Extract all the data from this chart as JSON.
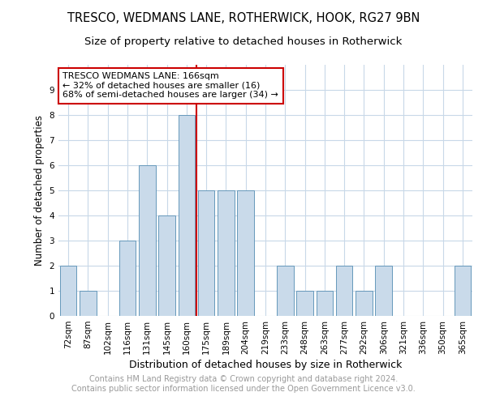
{
  "title": "TRESCO, WEDMANS LANE, ROTHERWICK, HOOK, RG27 9BN",
  "subtitle": "Size of property relative to detached houses in Rotherwick",
  "xlabel": "Distribution of detached houses by size in Rotherwick",
  "ylabel": "Number of detached properties",
  "categories": [
    "72sqm",
    "87sqm",
    "102sqm",
    "116sqm",
    "131sqm",
    "145sqm",
    "160sqm",
    "175sqm",
    "189sqm",
    "204sqm",
    "219sqm",
    "233sqm",
    "248sqm",
    "263sqm",
    "277sqm",
    "292sqm",
    "306sqm",
    "321sqm",
    "336sqm",
    "350sqm",
    "365sqm"
  ],
  "values": [
    2,
    1,
    0,
    3,
    6,
    4,
    8,
    5,
    5,
    5,
    0,
    2,
    1,
    1,
    2,
    1,
    2,
    0,
    0,
    0,
    2
  ],
  "bar_color": "#c9daea",
  "bar_edge_color": "#6699bb",
  "property_line_color": "#cc0000",
  "ylim": [
    0,
    10
  ],
  "yticks": [
    0,
    1,
    2,
    3,
    4,
    5,
    6,
    7,
    8,
    9,
    10
  ],
  "annotation_line1": "TRESCO WEDMANS LANE: 166sqm",
  "annotation_line2": "← 32% of detached houses are smaller (16)",
  "annotation_line3": "68% of semi-detached houses are larger (34) →",
  "annotation_box_color": "#ffffff",
  "annotation_box_edge": "#cc0000",
  "footer1": "Contains HM Land Registry data © Crown copyright and database right 2024.",
  "footer2": "Contains public sector information licensed under the Open Government Licence v3.0.",
  "bg_color": "#ffffff",
  "grid_color": "#c8d8e8",
  "title_fontsize": 10.5,
  "subtitle_fontsize": 9.5,
  "axis_label_fontsize": 8.5,
  "tick_fontsize": 7.5,
  "footer_fontsize": 7,
  "annotation_fontsize": 8
}
